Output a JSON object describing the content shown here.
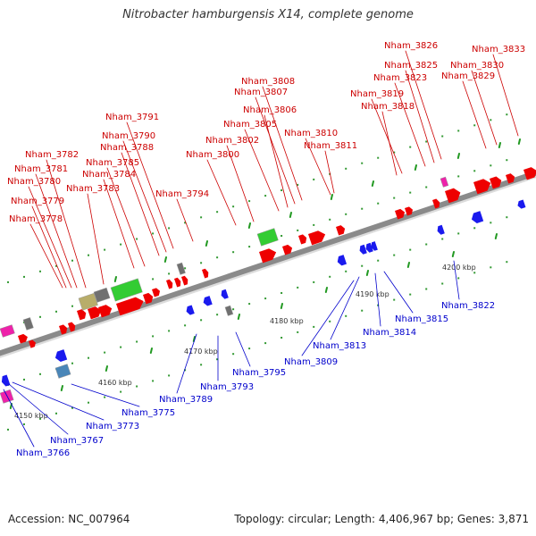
{
  "title": "Nitrobacter hamburgensis X14, complete genome",
  "footer": {
    "accession": "Accession: NC_007964",
    "summary": "Topology: circular; Length: 4,406,967 bp; Genes: 3,871"
  },
  "colors": {
    "backbone": "#8a8a8a",
    "forward_label": "#cc0000",
    "reverse_label": "#0000cc",
    "tick": "#229922",
    "feature_red": "#ee0000",
    "feature_blue": "#1a1aee",
    "feature_green": "#33cc33",
    "feature_gray": "#707070",
    "feature_magenta": "#ee22aa",
    "feature_khaki": "#b8ad6a",
    "feature_steelblue": "#4a86b8"
  },
  "scale_labels": [
    "4150 kbp",
    "4160 kbp",
    "4170 kbp",
    "4180 kbp",
    "4190 kbp",
    "4200 kbp"
  ],
  "forward_genes": [
    "Nham_3778",
    "Nham_3779",
    "Nham_3780",
    "Nham_3781",
    "Nham_3782",
    "Nham_3783",
    "Nham_3784",
    "Nham_3785",
    "Nham_3788",
    "Nham_3790",
    "Nham_3791",
    "Nham_3794",
    "Nham_3800",
    "Nham_3802",
    "Nham_3805",
    "Nham_3806",
    "Nham_3807",
    "Nham_3808",
    "Nham_3810",
    "Nham_3811",
    "Nham_3818",
    "Nham_3819",
    "Nham_3823",
    "Nham_3825",
    "Nham_3826",
    "Nham_3829",
    "Nham_3830",
    "Nham_3833"
  ],
  "reverse_genes": [
    "Nham_3766",
    "Nham_3767",
    "Nham_3773",
    "Nham_3775",
    "Nham_3789",
    "Nham_3793",
    "Nham_3795",
    "Nham_3809",
    "Nham_3813",
    "Nham_3814",
    "Nham_3815",
    "Nham_3822"
  ]
}
